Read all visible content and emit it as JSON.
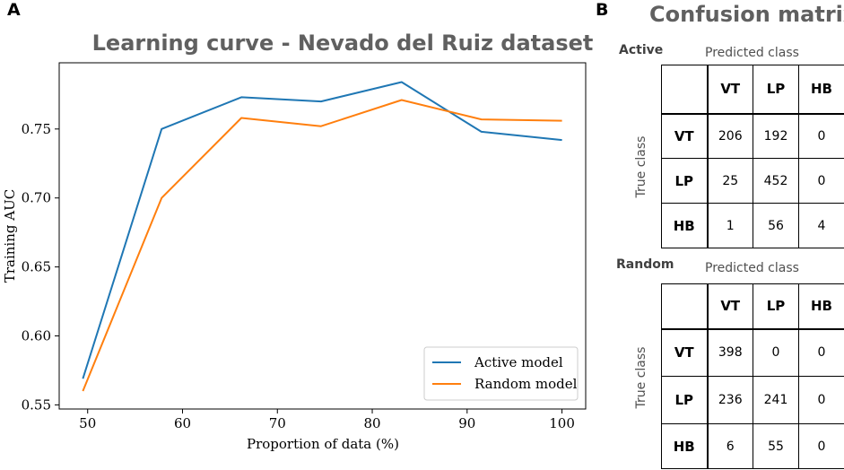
{
  "panel_a": {
    "letter": "A",
    "chart_data": {
      "type": "line",
      "title": "Learning curve - Nevado del Ruiz dataset",
      "xlabel": "Proportion of data (%)",
      "ylabel": "Training AUC",
      "xlim": [
        47,
        102.5
      ],
      "ylim": [
        0.547,
        0.798
      ],
      "xticks": [
        50,
        60,
        70,
        80,
        90,
        100
      ],
      "yticks": [
        0.55,
        0.6,
        0.65,
        0.7,
        0.75
      ],
      "ytick_labels": [
        "0.55",
        "0.60",
        "0.65",
        "0.70",
        "0.75"
      ],
      "legend_position": "bottom-right",
      "series": [
        {
          "name": "Active model",
          "color": "#1f77b4",
          "x": [
            49.5,
            57.8,
            66.2,
            74.6,
            83.1,
            91.5,
            100
          ],
          "y": [
            0.569,
            0.75,
            0.773,
            0.77,
            0.784,
            0.748,
            0.742
          ]
        },
        {
          "name": "Random model",
          "color": "#ff7f0e",
          "x": [
            49.5,
            57.8,
            66.2,
            74.6,
            83.1,
            91.5,
            100
          ],
          "y": [
            0.56,
            0.7,
            0.758,
            0.752,
            0.771,
            0.757,
            0.756
          ]
        }
      ]
    }
  },
  "panel_b": {
    "letter": "B",
    "title": "Confusion matrix",
    "matrices": [
      {
        "label": "Active",
        "predicted_label": "Predicted class",
        "true_label": "True class",
        "classes": [
          "VT",
          "LP",
          "HB"
        ],
        "rows": [
          {
            "label": "VT",
            "values": [
              "206",
              "192",
              "0"
            ]
          },
          {
            "label": "LP",
            "values": [
              "25",
              "452",
              "0"
            ]
          },
          {
            "label": "HB",
            "values": [
              "1",
              "56",
              "4"
            ]
          }
        ]
      },
      {
        "label": "Random",
        "predicted_label": "Predicted class",
        "true_label": "True class",
        "classes": [
          "VT",
          "LP",
          "HB"
        ],
        "rows": [
          {
            "label": "VT",
            "values": [
              "398",
              "0",
              "0"
            ]
          },
          {
            "label": "LP",
            "values": [
              "236",
              "241",
              "0"
            ]
          },
          {
            "label": "HB",
            "values": [
              "6",
              "55",
              "0"
            ]
          }
        ]
      }
    ]
  }
}
